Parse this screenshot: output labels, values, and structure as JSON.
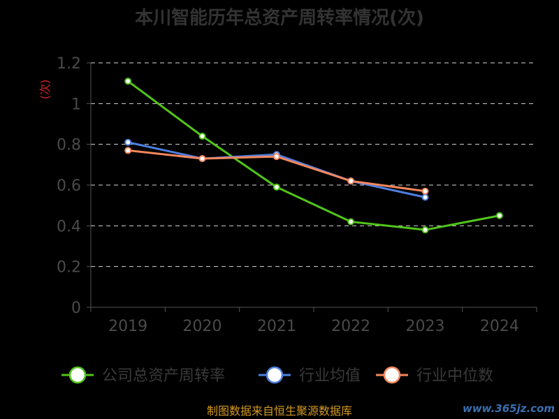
{
  "chart_data": {
    "type": "line",
    "title": "本川智能历年总资产周转率情况(次)",
    "ylabel": "(次)",
    "xlabel": "",
    "categories": [
      "2019",
      "2020",
      "2021",
      "2022",
      "2023",
      "2024"
    ],
    "ylim": [
      0,
      1.2
    ],
    "yticks": [
      "0",
      "0.2",
      "0.4",
      "0.6",
      "0.8",
      "1",
      "1.2"
    ],
    "grid": true,
    "legend_position": "bottom",
    "series": [
      {
        "name": "公司总资产周转率",
        "color": "#52c41a",
        "values": [
          1.11,
          0.84,
          0.59,
          0.42,
          0.38,
          0.45
        ]
      },
      {
        "name": "行业均值",
        "color": "#4e7fe0",
        "values": [
          0.81,
          0.73,
          0.75,
          0.62,
          0.54,
          null
        ]
      },
      {
        "name": "行业中位数",
        "color": "#f5875e",
        "values": [
          0.77,
          0.73,
          0.74,
          0.62,
          0.57,
          null
        ]
      }
    ]
  },
  "footer": {
    "source": "制图数据来自恒生聚源数据库",
    "watermark": "www.365jz.com"
  }
}
